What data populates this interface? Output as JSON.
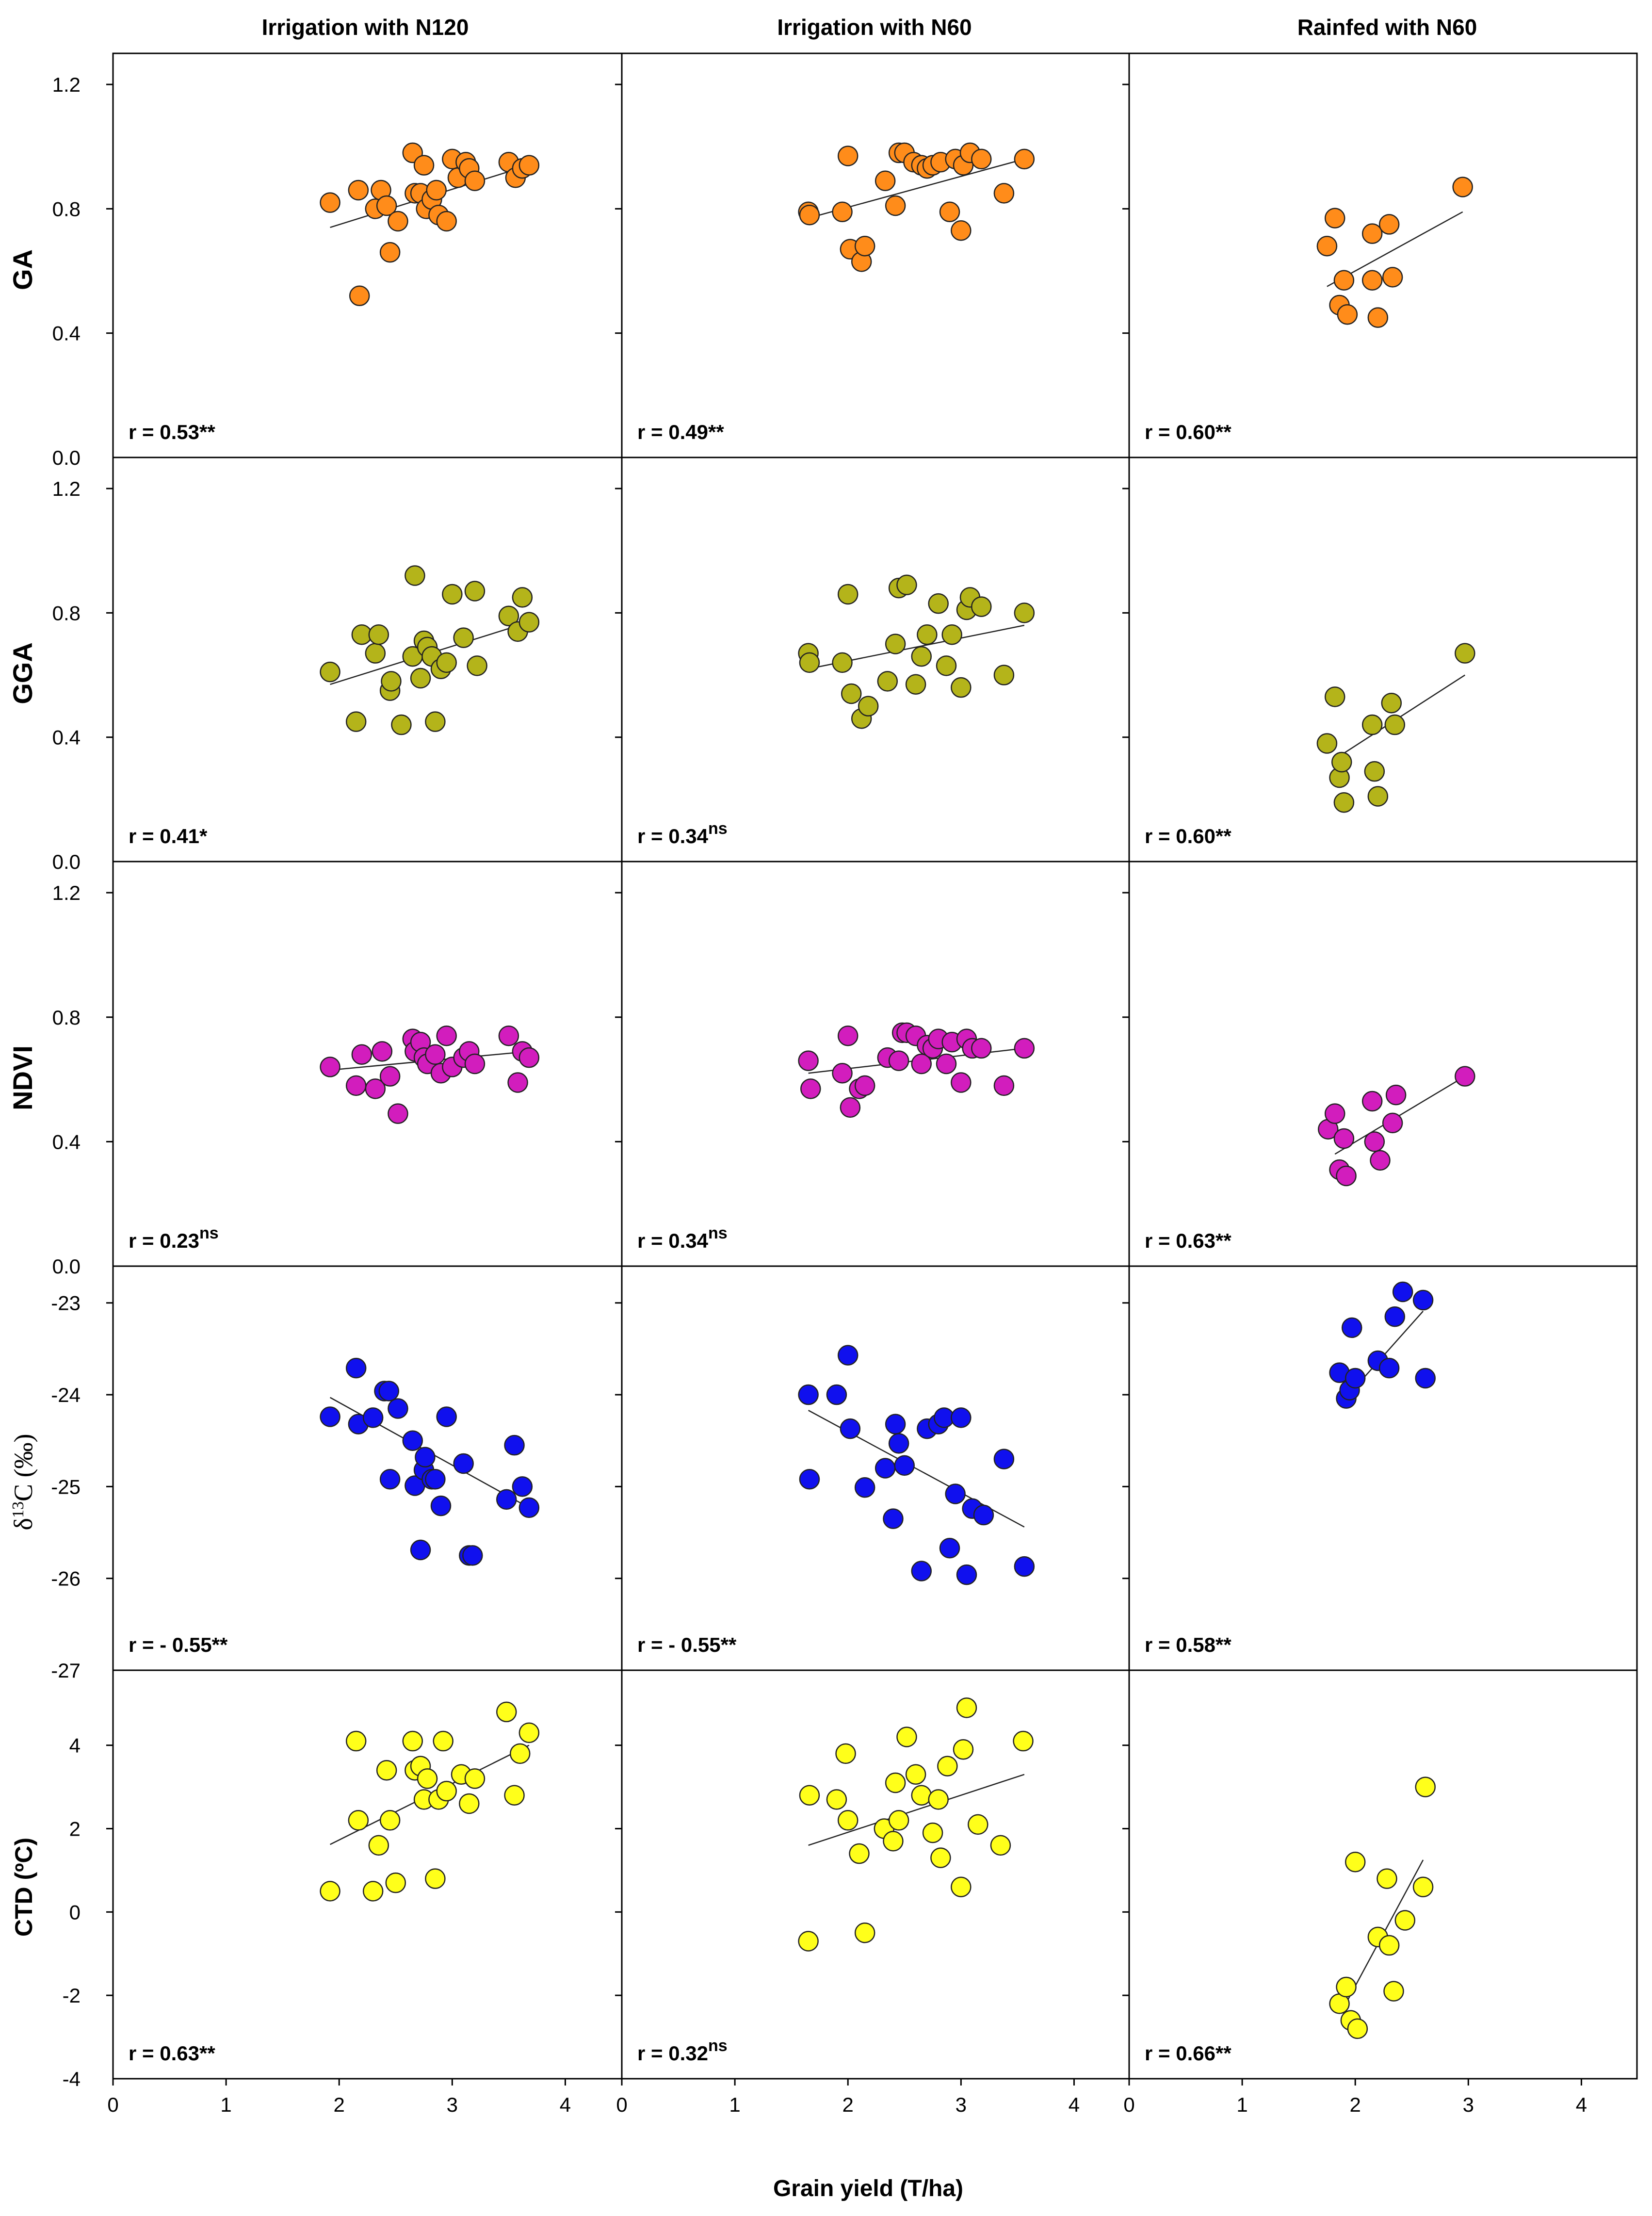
{
  "figure": {
    "x_label": "Grain yield (T/ha)",
    "columns": [
      "Irrigation with N120",
      "Irrigation with N60",
      "Rainfed with N60"
    ]
  },
  "chart_data": [
    {
      "type": "scatter",
      "row": "GA",
      "column": "Irrigation with N120",
      "ylabel": "GA",
      "xlim": [
        0,
        4.5
      ],
      "ylim": [
        0,
        1.3
      ],
      "x": [
        1.92,
        2.18,
        2.17,
        2.32,
        2.37,
        2.42,
        2.45,
        2.52,
        2.65,
        2.67,
        2.72,
        2.75,
        2.77,
        2.82,
        2.86,
        2.88,
        2.95,
        3.0,
        3.05,
        3.12,
        3.15,
        3.2,
        3.5,
        3.56,
        3.62,
        3.68
      ],
      "y": [
        0.82,
        0.52,
        0.86,
        0.8,
        0.86,
        0.81,
        0.66,
        0.76,
        0.98,
        0.85,
        0.85,
        0.94,
        0.8,
        0.83,
        0.86,
        0.78,
        0.76,
        0.96,
        0.9,
        0.95,
        0.93,
        0.89,
        0.95,
        0.9,
        0.93,
        0.94
      ],
      "trend": {
        "x": [
          1.92,
          3.68
        ],
        "y": [
          0.74,
          0.94
        ]
      },
      "annotation": "r = 0.53",
      "significance": "**"
    },
    {
      "type": "scatter",
      "row": "GA",
      "column": "Irrigation with N60",
      "ylabel": "GA",
      "xlim": [
        0,
        4.5
      ],
      "ylim": [
        0,
        1.3
      ],
      "x": [
        1.65,
        1.66,
        1.95,
        2.0,
        2.02,
        2.12,
        2.15,
        2.33,
        2.42,
        2.45,
        2.5,
        2.58,
        2.65,
        2.7,
        2.75,
        2.82,
        2.9,
        2.95,
        3.0,
        3.02,
        3.08,
        3.18,
        3.38,
        3.56
      ],
      "y": [
        0.79,
        0.78,
        0.79,
        0.97,
        0.67,
        0.63,
        0.68,
        0.89,
        0.81,
        0.98,
        0.98,
        0.95,
        0.94,
        0.93,
        0.94,
        0.95,
        0.79,
        0.96,
        0.73,
        0.94,
        0.98,
        0.96,
        0.85,
        0.96
      ],
      "trend": {
        "x": [
          1.65,
          3.56
        ],
        "y": [
          0.77,
          0.96
        ]
      },
      "annotation": "r = 0.49",
      "significance": "**"
    },
    {
      "type": "scatter",
      "row": "GA",
      "column": "Rainfed with N60",
      "ylabel": "GA",
      "xlim": [
        0,
        4.5
      ],
      "ylim": [
        0,
        1.3
      ],
      "x": [
        1.75,
        1.82,
        1.86,
        1.9,
        1.93,
        2.15,
        2.15,
        2.2,
        2.3,
        2.33,
        2.95
      ],
      "y": [
        0.68,
        0.77,
        0.49,
        0.57,
        0.46,
        0.72,
        0.57,
        0.45,
        0.75,
        0.58,
        0.87
      ],
      "trend": {
        "x": [
          1.75,
          2.95
        ],
        "y": [
          0.55,
          0.79
        ]
      },
      "annotation": "r = 0.60",
      "significance": "**"
    },
    {
      "type": "scatter",
      "row": "GGA",
      "column": "Irrigation with N120",
      "ylabel": "GGA",
      "xlim": [
        0,
        4.5
      ],
      "ylim": [
        0,
        1.3
      ],
      "x": [
        1.92,
        2.15,
        2.2,
        2.32,
        2.35,
        2.45,
        2.46,
        2.55,
        2.65,
        2.67,
        2.72,
        2.75,
        2.78,
        2.82,
        2.85,
        2.9,
        2.95,
        3.0,
        3.1,
        3.2,
        3.22,
        3.5,
        3.58,
        3.62,
        3.68
      ],
      "y": [
        0.61,
        0.45,
        0.73,
        0.67,
        0.73,
        0.55,
        0.58,
        0.44,
        0.66,
        0.92,
        0.59,
        0.71,
        0.69,
        0.66,
        0.45,
        0.62,
        0.64,
        0.86,
        0.72,
        0.87,
        0.63,
        0.79,
        0.74,
        0.85,
        0.77
      ],
      "trend": {
        "x": [
          1.92,
          3.68
        ],
        "y": [
          0.57,
          0.77
        ]
      },
      "annotation": "r = 0.41",
      "significance": "*"
    },
    {
      "type": "scatter",
      "row": "GGA",
      "column": "Irrigation with N60",
      "ylabel": "GGA",
      "xlim": [
        0,
        4.5
      ],
      "ylim": [
        0,
        1.3
      ],
      "x": [
        1.65,
        1.66,
        1.95,
        2.0,
        2.03,
        2.12,
        2.18,
        2.35,
        2.42,
        2.45,
        2.52,
        2.6,
        2.65,
        2.7,
        2.8,
        2.87,
        2.92,
        3.0,
        3.05,
        3.08,
        3.18,
        3.38,
        3.56
      ],
      "y": [
        0.67,
        0.64,
        0.64,
        0.86,
        0.54,
        0.46,
        0.5,
        0.58,
        0.7,
        0.88,
        0.89,
        0.57,
        0.66,
        0.73,
        0.83,
        0.63,
        0.73,
        0.56,
        0.81,
        0.85,
        0.82,
        0.6,
        0.8
      ],
      "trend": {
        "x": [
          1.65,
          3.56
        ],
        "y": [
          0.62,
          0.76
        ]
      },
      "annotation": "r = 0.34",
      "significance": "ns"
    },
    {
      "type": "scatter",
      "row": "GGA",
      "column": "Rainfed with N60",
      "ylabel": "GGA",
      "xlim": [
        0,
        4.5
      ],
      "ylim": [
        0,
        1.3
      ],
      "x": [
        1.75,
        1.82,
        1.86,
        1.88,
        1.9,
        2.15,
        2.17,
        2.2,
        2.32,
        2.35,
        2.97
      ],
      "y": [
        0.38,
        0.53,
        0.27,
        0.32,
        0.19,
        0.44,
        0.29,
        0.21,
        0.51,
        0.44,
        0.67
      ],
      "trend": {
        "x": [
          1.82,
          2.97
        ],
        "y": [
          0.33,
          0.6
        ]
      },
      "annotation": "r = 0.60",
      "significance": "**"
    },
    {
      "type": "scatter",
      "row": "NDVI",
      "column": "Irrigation with N120",
      "ylabel": "NDVI",
      "xlim": [
        0,
        4.5
      ],
      "ylim": [
        0,
        1.3
      ],
      "x": [
        1.92,
        2.15,
        2.2,
        2.32,
        2.38,
        2.45,
        2.52,
        2.65,
        2.67,
        2.72,
        2.75,
        2.78,
        2.85,
        2.9,
        2.95,
        3.0,
        3.1,
        3.15,
        3.2,
        3.5,
        3.58,
        3.62,
        3.68
      ],
      "y": [
        0.64,
        0.58,
        0.68,
        0.57,
        0.69,
        0.61,
        0.49,
        0.73,
        0.69,
        0.72,
        0.67,
        0.65,
        0.68,
        0.62,
        0.74,
        0.64,
        0.67,
        0.69,
        0.65,
        0.74,
        0.59,
        0.69,
        0.67
      ],
      "trend": {
        "x": [
          1.92,
          3.68
        ],
        "y": [
          0.63,
          0.69
        ]
      },
      "annotation": "r = 0.23",
      "significance": "ns"
    },
    {
      "type": "scatter",
      "row": "NDVI",
      "column": "Irrigation with N60",
      "ylabel": "NDVI",
      "xlim": [
        0,
        4.5
      ],
      "ylim": [
        0,
        1.3
      ],
      "x": [
        1.65,
        1.67,
        1.95,
        2.0,
        2.02,
        2.1,
        2.15,
        2.35,
        2.45,
        2.48,
        2.52,
        2.6,
        2.65,
        2.7,
        2.75,
        2.8,
        2.87,
        2.92,
        3.0,
        3.05,
        3.1,
        3.18,
        3.38,
        3.56
      ],
      "y": [
        0.66,
        0.57,
        0.62,
        0.74,
        0.51,
        0.57,
        0.58,
        0.67,
        0.66,
        0.75,
        0.75,
        0.74,
        0.65,
        0.71,
        0.7,
        0.73,
        0.65,
        0.72,
        0.59,
        0.73,
        0.7,
        0.7,
        0.58,
        0.7
      ],
      "trend": {
        "x": [
          1.65,
          3.56
        ],
        "y": [
          0.62,
          0.7
        ]
      },
      "annotation": "r = 0.34",
      "significance": "ns"
    },
    {
      "type": "scatter",
      "row": "NDVI",
      "column": "Rainfed with N60",
      "ylabel": "NDVI",
      "xlim": [
        0,
        4.5
      ],
      "ylim": [
        0,
        1.3
      ],
      "x": [
        1.76,
        1.82,
        1.86,
        1.9,
        1.92,
        2.15,
        2.17,
        2.22,
        2.33,
        2.36,
        2.97
      ],
      "y": [
        0.44,
        0.49,
        0.31,
        0.41,
        0.29,
        0.53,
        0.4,
        0.34,
        0.46,
        0.55,
        0.61
      ],
      "trend": {
        "x": [
          1.82,
          2.97
        ],
        "y": [
          0.36,
          0.61
        ]
      },
      "annotation": "r = 0.63",
      "significance": "**"
    },
    {
      "type": "scatter",
      "row": "δ13C (‰)",
      "column": "Irrigation with N120",
      "ylabel": "δ13C (‰)",
      "xlim": [
        0,
        4.5
      ],
      "ylim": [
        -27,
        -22.6
      ],
      "x": [
        1.92,
        2.15,
        2.17,
        2.3,
        2.4,
        2.44,
        2.45,
        2.52,
        2.65,
        2.67,
        2.72,
        2.75,
        2.76,
        2.82,
        2.85,
        2.9,
        2.95,
        3.1,
        3.15,
        3.18,
        3.48,
        3.55,
        3.62,
        3.68
      ],
      "y": [
        -24.24,
        -23.71,
        -24.32,
        -24.25,
        -23.96,
        -23.96,
        -24.92,
        -24.15,
        -24.5,
        -24.99,
        -25.69,
        -24.82,
        -24.68,
        -24.92,
        -24.92,
        -25.21,
        -24.24,
        -24.75,
        -25.75,
        -25.75,
        -25.14,
        -24.55,
        -25.0,
        -25.23
      ],
      "trend": {
        "x": [
          1.92,
          3.68
        ],
        "y": [
          -24.03,
          -25.23
        ]
      },
      "annotation": "r = - 0.55",
      "significance": "**"
    },
    {
      "type": "scatter",
      "row": "δ13C (‰)",
      "column": "Irrigation with N60",
      "ylabel": "δ13C (‰)",
      "xlim": [
        0,
        4.5
      ],
      "ylim": [
        -27,
        -22.6
      ],
      "x": [
        1.65,
        1.66,
        1.9,
        2.0,
        2.02,
        2.15,
        2.33,
        2.4,
        2.42,
        2.45,
        2.5,
        2.65,
        2.7,
        2.8,
        2.85,
        2.9,
        2.95,
        3.0,
        3.05,
        3.1,
        3.2,
        3.38,
        3.56
      ],
      "y": [
        -24.0,
        -24.92,
        -24.0,
        -23.57,
        -24.37,
        -25.01,
        -24.8,
        -25.35,
        -24.32,
        -24.53,
        -24.77,
        -25.92,
        -24.37,
        -24.32,
        -24.25,
        -25.67,
        -25.08,
        -24.25,
        -25.96,
        -25.24,
        -25.31,
        -24.7,
        -25.87
      ],
      "trend": {
        "x": [
          1.65,
          3.56
        ],
        "y": [
          -24.17,
          -25.44
        ]
      },
      "annotation": "r = - 0.55",
      "significance": "**"
    },
    {
      "type": "scatter",
      "row": "δ13C (‰)",
      "column": "Rainfed with N60",
      "ylabel": "δ13C (‰)",
      "xlim": [
        0,
        4.5
      ],
      "ylim": [
        -27,
        -22.6
      ],
      "x": [
        1.86,
        1.92,
        1.95,
        1.97,
        2.0,
        2.2,
        2.3,
        2.35,
        2.42,
        2.6,
        2.62
      ],
      "y": [
        -23.76,
        -24.04,
        -23.95,
        -23.27,
        -23.82,
        -23.63,
        -23.71,
        -23.15,
        -22.88,
        -22.97,
        -23.82
      ],
      "trend": {
        "x": [
          1.92,
          2.6
        ],
        "y": [
          -24.03,
          -23.09
        ]
      },
      "annotation": "r = 0.58",
      "significance": "**"
    },
    {
      "type": "scatter",
      "row": "CTD (ºC)",
      "column": "Irrigation with N120",
      "ylabel": "CTD (ºC)",
      "xlim": [
        0,
        4.5
      ],
      "ylim": [
        -4,
        5.8
      ],
      "x": [
        1.92,
        2.15,
        2.17,
        2.3,
        2.35,
        2.42,
        2.45,
        2.5,
        2.65,
        2.67,
        2.72,
        2.75,
        2.78,
        2.85,
        2.88,
        2.92,
        2.95,
        3.08,
        3.15,
        3.2,
        3.48,
        3.55,
        3.6,
        3.68
      ],
      "y": [
        0.5,
        4.1,
        2.2,
        0.5,
        1.6,
        3.4,
        2.2,
        0.7,
        4.1,
        3.4,
        3.5,
        2.7,
        3.2,
        0.8,
        2.7,
        4.1,
        2.9,
        3.3,
        2.6,
        3.2,
        4.8,
        2.8,
        3.8,
        4.3
      ],
      "trend": {
        "x": [
          1.92,
          3.68
        ],
        "y": [
          1.62,
          4.0
        ]
      },
      "annotation": "r = 0.63",
      "significance": "**"
    },
    {
      "type": "scatter",
      "row": "CTD (ºC)",
      "column": "Irrigation with N60",
      "ylabel": "CTD (ºC)",
      "xlim": [
        0,
        4.5
      ],
      "ylim": [
        -4,
        5.8
      ],
      "x": [
        1.65,
        1.66,
        1.9,
        1.98,
        2.0,
        2.1,
        2.15,
        2.32,
        2.4,
        2.42,
        2.45,
        2.52,
        2.6,
        2.65,
        2.75,
        2.8,
        2.82,
        2.88,
        3.0,
        3.02,
        3.05,
        3.15,
        3.35,
        3.55
      ],
      "y": [
        -0.7,
        2.8,
        2.7,
        3.8,
        2.2,
        1.4,
        -0.5,
        2.0,
        1.7,
        3.1,
        2.2,
        4.2,
        3.3,
        2.8,
        1.9,
        2.7,
        1.3,
        3.5,
        0.6,
        3.9,
        4.9,
        2.1,
        1.6,
        4.1
      ],
      "trend": {
        "x": [
          1.65,
          3.56
        ],
        "y": [
          1.6,
          3.3
        ]
      },
      "annotation": "r = 0.32",
      "significance": "ns"
    },
    {
      "type": "scatter",
      "row": "CTD (ºC)",
      "column": "Rainfed with N60",
      "ylabel": "CTD (ºC)",
      "xlim": [
        0,
        4.5
      ],
      "ylim": [
        -4,
        5.8
      ],
      "x": [
        1.86,
        1.92,
        1.96,
        2.0,
        2.02,
        2.2,
        2.28,
        2.3,
        2.34,
        2.44,
        2.6,
        2.62
      ],
      "y": [
        -2.2,
        -1.8,
        -2.6,
        1.2,
        -2.8,
        -0.6,
        0.8,
        -0.8,
        -1.9,
        -0.2,
        0.6,
        3.0
      ],
      "trend": {
        "x": [
          1.92,
          2.6
        ],
        "y": [
          -2.18,
          1.25
        ]
      },
      "annotation": "r = 0.66",
      "significance": "**"
    }
  ],
  "axes": {
    "x_ticks": [
      "0",
      "1",
      "2",
      "3",
      "4"
    ],
    "rows": [
      {
        "key": "GA",
        "labels": [
          {
            "value": 1.2,
            "text": "1.2"
          },
          {
            "value": 0.8,
            "text": "0.8"
          },
          {
            "value": 0.4,
            "text": "0.4"
          },
          {
            "value": 0.0,
            "text": "0.0"
          }
        ]
      },
      {
        "key": "GGA",
        "labels": [
          {
            "value": 1.2,
            "text": "1.2"
          },
          {
            "value": 0.8,
            "text": "0.8"
          },
          {
            "value": 0.4,
            "text": "0.4"
          },
          {
            "value": 0.0,
            "text": "0.0"
          }
        ]
      },
      {
        "key": "NDVI",
        "labels": [
          {
            "value": 1.2,
            "text": "1.2"
          },
          {
            "value": 0.8,
            "text": "0.8"
          },
          {
            "value": 0.4,
            "text": "0.4"
          },
          {
            "value": 0.0,
            "text": "0.0"
          }
        ]
      },
      {
        "key": "d13C",
        "labels": [
          {
            "value": -23,
            "text": "-23"
          },
          {
            "value": -24,
            "text": "-24"
          },
          {
            "value": -25,
            "text": "-25"
          },
          {
            "value": -26,
            "text": "-26"
          },
          {
            "value": -27,
            "text": "-27"
          }
        ]
      },
      {
        "key": "CTD",
        "labels": [
          {
            "value": 4,
            "text": "4"
          },
          {
            "value": 2,
            "text": "2"
          },
          {
            "value": 0,
            "text": "0"
          },
          {
            "value": -2,
            "text": "-2"
          },
          {
            "value": -4,
            "text": "-4"
          }
        ]
      }
    ]
  },
  "row_labels": {
    "ga": "GA",
    "gga": "GGA",
    "ndvi": "NDVI",
    "d13c_delta": "δ",
    "d13c_sup": "13",
    "d13c_rest": "C (‰)",
    "ctd": "CTD (ºC)"
  },
  "colors": {
    "GA": "#ff8c1a",
    "GGA": "#b4b41a",
    "NDVI": "#d21dbd",
    "d13C": "#1010ee",
    "CTD": "#ffff1a"
  }
}
